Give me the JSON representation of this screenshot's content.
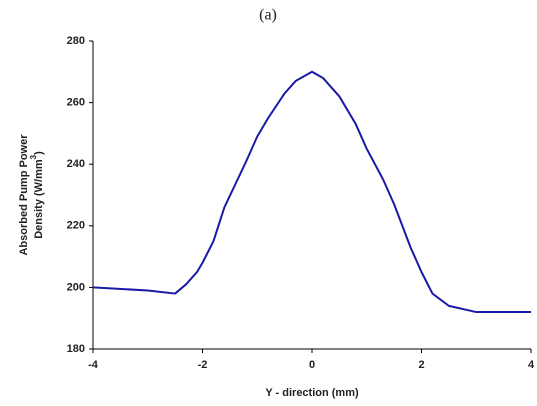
{
  "chart_data": {
    "type": "line",
    "title": "(a)",
    "x_label": "Y - direction (mm)",
    "y_label": {
      "line1": "Absorbed Pump Power",
      "line2": "Density (W/mm",
      "superscript": "3",
      "line2_end": ")"
    },
    "x": [
      -4,
      -3,
      -2.5,
      -2.3,
      -2.1,
      -2,
      -1.8,
      -1.6,
      -1.2,
      -1,
      -0.8,
      -0.5,
      -0.3,
      0,
      0.2,
      0.5,
      0.8,
      1,
      1.3,
      1.5,
      1.8,
      2,
      2.2,
      2.5,
      3,
      3.5,
      4
    ],
    "series": [
      {
        "color": "#1a1aa6",
        "values": [
          200,
          199,
          198,
          201,
          205,
          208,
          215,
          226,
          241,
          249,
          255,
          263,
          267,
          270,
          268,
          262,
          253,
          245,
          235,
          227,
          213,
          205,
          198,
          194,
          192,
          192,
          192
        ]
      }
    ],
    "xlim": [
      -4,
      4
    ],
    "xticks": [
      -4,
      -2,
      0,
      2,
      4
    ],
    "ylim": [
      180,
      280
    ],
    "yticks": [
      180,
      200,
      220,
      240,
      260,
      280
    ]
  }
}
